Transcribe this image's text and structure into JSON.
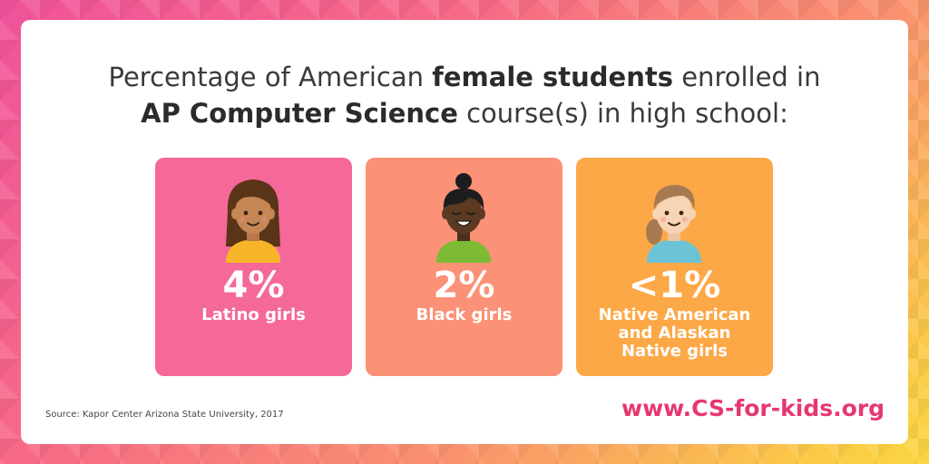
{
  "headline": {
    "part1": "Percentage of American ",
    "bold1": "female students",
    "part2": " enrolled in ",
    "bold2": "AP Computer Science",
    "part3": " course(s) in high school:"
  },
  "stats": [
    {
      "value": "4%",
      "label": "Latino girls",
      "color": "#f5689a",
      "icon": "latino-girl-avatar-icon"
    },
    {
      "value": "2%",
      "label": "Black girls",
      "color": "#fb9176",
      "icon": "black-girl-avatar-icon"
    },
    {
      "value": "<1%",
      "label_lines": [
        "Native American",
        "and Alaskan",
        "Native girls"
      ],
      "color": "#fda846",
      "icon": "native-girl-avatar-icon"
    }
  ],
  "source": "Source: Kapor Center Arizona State University, 2017",
  "url": "www.CS-for-kids.org"
}
